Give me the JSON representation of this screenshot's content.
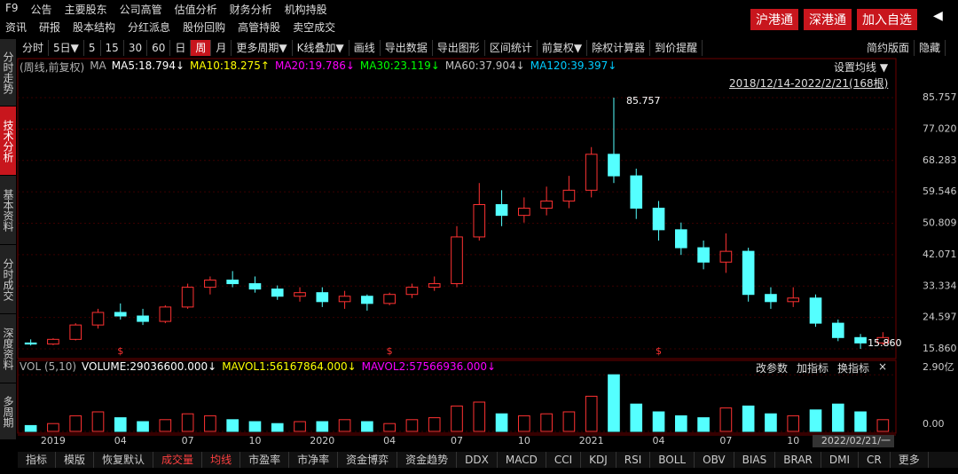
{
  "menu_row1": [
    "F9",
    "公告",
    "主要股东",
    "公司高管",
    "估值分析",
    "财务分析",
    "机构持股"
  ],
  "menu_row2": [
    "资讯",
    "研报",
    "股本结构",
    "分红派息",
    "股份回购",
    "高管持股",
    "卖空成交"
  ],
  "buttons": [
    "沪港通",
    "深港通",
    "加入自选"
  ],
  "sidebar": [
    "分时走势",
    "技术分析",
    "基本资料",
    "分时成交",
    "深度资料",
    "多周期"
  ],
  "toolbar": [
    "分时",
    "5日▼",
    "5",
    "15",
    "30",
    "60",
    "日",
    "周",
    "月",
    "更多周期▼",
    "K线叠加▼",
    "画线",
    "导出数据",
    "导出图形",
    "区间统计",
    "前复权▼",
    "除权计算器",
    "到价提醒"
  ],
  "toolbar_right": [
    "简约版面",
    "隐藏"
  ],
  "ma_legend": [
    {
      "text": "(周线,前复权)",
      "color": "#b0b0b0"
    },
    {
      "text": "MA",
      "color": "#b0b0b0"
    },
    {
      "text": "MA5:18.794↓",
      "color": "#ffffff"
    },
    {
      "text": "MA10:18.275↑",
      "color": "#ffff00"
    },
    {
      "text": "MA20:19.786↓",
      "color": "#ff00ff"
    },
    {
      "text": "MA30:23.119↓",
      "color": "#00ff00"
    },
    {
      "text": "MA60:37.904↓",
      "color": "#c0c0c0"
    },
    {
      "text": "MA120:39.397↓",
      "color": "#00ccff"
    }
  ],
  "set_ma": "设置均线 ▼",
  "range": "2018/12/14-2022/2/21(168根)",
  "vol_legend": [
    {
      "text": "VOL (5,10)",
      "color": "#b0b0b0"
    },
    {
      "text": "VOLUME:29036600.000↓",
      "color": "#ffffff"
    },
    {
      "text": "MAVOL1:56167864.000↓",
      "color": "#ffff00"
    },
    {
      "text": "MAVOL2:57566936.000↓",
      "color": "#ff00ff"
    }
  ],
  "vol_buttons": [
    "改参数",
    "加指标",
    "换指标",
    "×"
  ],
  "bottom_tabs": [
    "指标",
    "模版",
    "恢复默认",
    "成交量",
    "均线",
    "市盈率",
    "市净率",
    "资金博弈",
    "资金趋势",
    "DDX",
    "MACD",
    "CCI",
    "KDJ",
    "RSI",
    "BOLL",
    "OBV",
    "BIAS",
    "BRAR",
    "DMI",
    "CR",
    "更多"
  ],
  "chart_data": {
    "type": "candlestick",
    "categories": [
      null,
      "2019",
      null,
      null,
      "04",
      null,
      null,
      "07",
      null,
      null,
      "10",
      null,
      null,
      "2020",
      null,
      null,
      "04",
      null,
      null,
      "07",
      null,
      null,
      "10",
      null,
      null,
      "2021",
      null,
      null,
      "04",
      null,
      null,
      "07",
      null,
      null,
      "10",
      null,
      null,
      null,
      "2022/02/21/一"
    ],
    "open": [
      17.5,
      17.2,
      18.5,
      22.5,
      26,
      25,
      23.5,
      27.5,
      33,
      35,
      34,
      32.5,
      30.5,
      31.5,
      29,
      30.5,
      28.5,
      31,
      33,
      34,
      47,
      56,
      53,
      55,
      57,
      60,
      70,
      64,
      55,
      49,
      44,
      40,
      43,
      31,
      29,
      30,
      23,
      19,
      17.5
    ],
    "high": [
      18.5,
      18.8,
      23,
      27,
      28.5,
      27,
      28,
      34,
      36,
      37.5,
      36,
      33.5,
      33,
      33,
      32,
      31,
      31.5,
      34,
      36,
      50,
      62,
      60,
      58,
      61,
      64,
      72,
      85.757,
      66,
      57,
      51,
      46,
      48,
      44,
      33,
      33,
      31,
      24,
      20,
      20.5
    ],
    "low": [
      16.8,
      16.9,
      18.2,
      21.5,
      24,
      22.5,
      23,
      27,
      31,
      33,
      31.5,
      29.5,
      29,
      27.5,
      27,
      26.5,
      28,
      30,
      32,
      33,
      46,
      50,
      51,
      53,
      55,
      58,
      62,
      52,
      46,
      42,
      38,
      37,
      29,
      27,
      27.5,
      22,
      18,
      15.86,
      17
    ],
    "close": [
      17.2,
      18.5,
      22.5,
      26,
      25,
      23.5,
      27.5,
      33,
      35,
      34,
      32.5,
      30.5,
      31.5,
      29,
      30.5,
      28.5,
      31,
      33,
      34,
      47,
      56,
      53,
      55,
      57,
      60,
      70,
      64,
      55,
      49,
      44,
      40,
      43,
      31,
      29,
      30,
      23,
      19,
      17.5,
      19
    ],
    "up_color": "#ff3232",
    "down_color": "#54ffff",
    "ylim": [
      13.64,
      88.23
    ],
    "yticks": [
      {
        "value": 15.86,
        "label": "15.860"
      },
      24.597,
      33.334,
      42.071,
      50.809,
      59.546,
      68.283,
      {
        "value": 77.02,
        "label": "77.020"
      },
      85.757
    ],
    "annotations": [
      {
        "text": "85.757",
        "index": 26
      },
      {
        "text": "15.860",
        "index": 37
      }
    ],
    "dividend_markers": [
      {
        "text": "$",
        "index": 4
      },
      {
        "text": "$",
        "index": 16
      },
      {
        "text": "$",
        "index": 28
      }
    ],
    "volume": [
      0.3,
      0.4,
      0.8,
      1.0,
      0.7,
      0.5,
      0.6,
      0.9,
      0.8,
      0.6,
      0.5,
      0.4,
      0.5,
      0.5,
      0.6,
      0.5,
      0.4,
      0.6,
      0.7,
      1.3,
      1.5,
      0.9,
      0.8,
      0.9,
      1.0,
      1.8,
      2.9,
      1.4,
      1.0,
      0.8,
      0.7,
      1.2,
      1.3,
      0.9,
      0.8,
      1.1,
      1.4,
      1.0,
      0.6
    ],
    "vol_ylim": [
      0,
      3.0
    ],
    "vol_yticks": [
      {
        "value": 0,
        "label": "0.00"
      },
      {
        "value": 2.9,
        "label": "2.90亿"
      }
    ]
  }
}
